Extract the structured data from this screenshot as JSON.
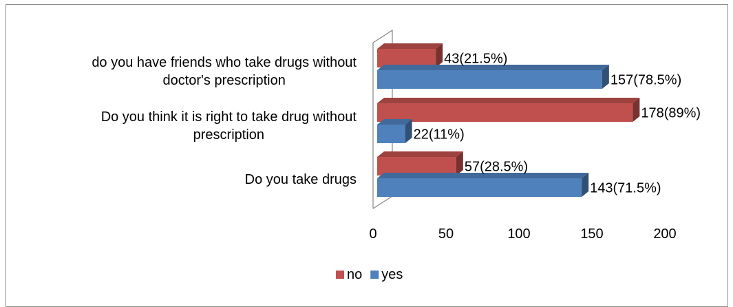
{
  "chart_data": {
    "type": "bar",
    "orientation": "horizontal",
    "three_d": true,
    "categories": [
      [
        "do you have friends who take drugs without",
        "doctor's prescription"
      ],
      [
        "Do you think it is right to take drug without",
        "prescription"
      ],
      [
        "Do you take drugs"
      ]
    ],
    "series": [
      {
        "name": "no",
        "color": "#C0504D",
        "values": [
          43,
          178,
          57
        ],
        "labels": [
          "43(21.5%)",
          "178(89%)",
          "57(28.5%)"
        ]
      },
      {
        "name": "yes",
        "color": "#4F81BD",
        "values": [
          157,
          22,
          143
        ],
        "labels": [
          "157(78.5%)",
          "22(11%)",
          "143(71.5%)"
        ]
      }
    ],
    "x_ticks": [
      "0",
      "50",
      "100",
      "150",
      "200"
    ],
    "xlim": [
      0,
      200
    ],
    "grid": false,
    "legend_position": "bottom"
  }
}
